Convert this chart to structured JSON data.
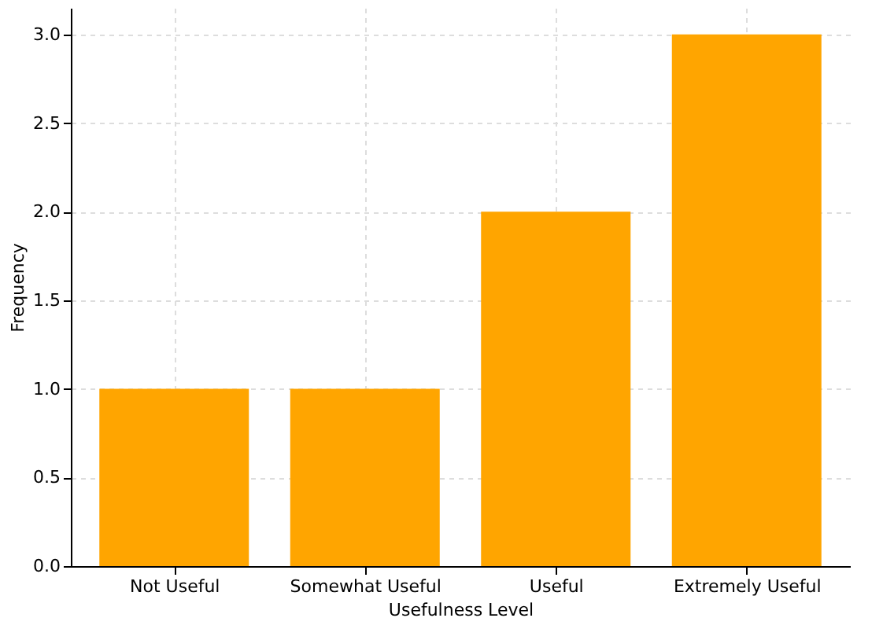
{
  "chart_data": {
    "type": "bar",
    "xlabel": "Usefulness Level",
    "ylabel": "Frequency",
    "categories": [
      "Not Useful",
      "Somewhat Useful",
      "Useful",
      "Extremely Useful"
    ],
    "values": [
      1,
      1,
      2,
      3
    ],
    "color": "#ffa500",
    "ylim": [
      0,
      3.15
    ],
    "yticks": [
      {
        "value": 0,
        "label": "0.0"
      },
      0.5,
      {
        "value": 1,
        "label": "1.0"
      },
      1.5,
      {
        "value": 2,
        "label": "2.0"
      },
      2.5,
      {
        "value": 3,
        "label": "3.0"
      }
    ],
    "grid": true
  }
}
